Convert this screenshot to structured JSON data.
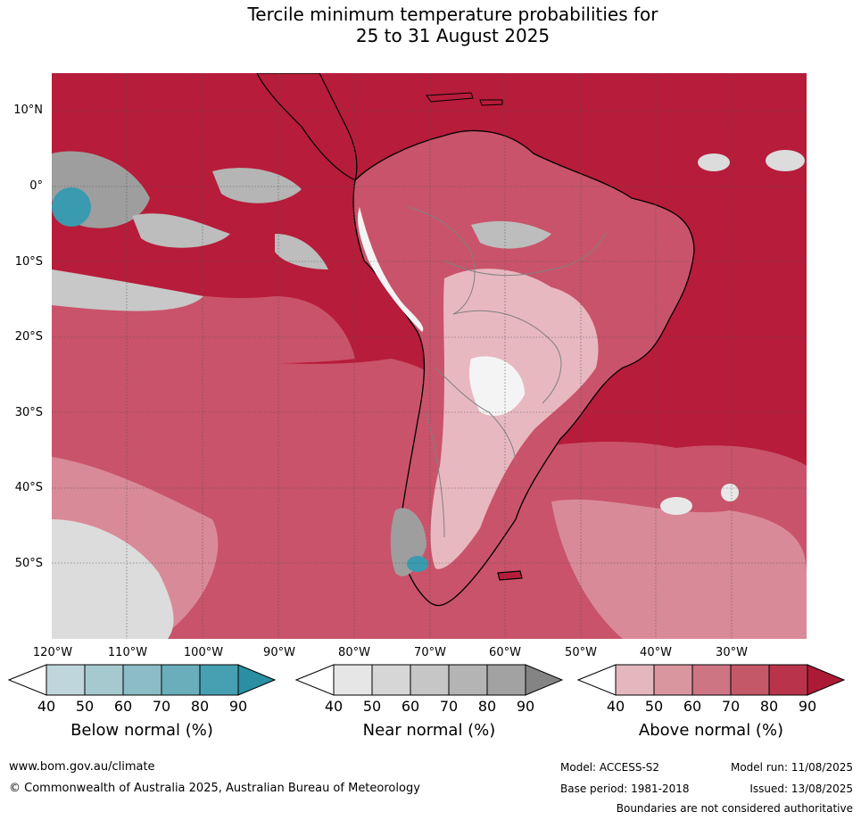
{
  "title": {
    "line1": "Tercile minimum temperature probabilities for",
    "line2": "25 to 31 August 2025"
  },
  "map": {
    "lat_labels": [
      "10°N",
      "0°",
      "10°S",
      "20°S",
      "30°S",
      "40°S",
      "50°S"
    ],
    "lon_labels": [
      "120°W",
      "110°W",
      "100°W",
      "90°W",
      "80°W",
      "70°W",
      "60°W",
      "50°W",
      "40°W",
      "30°W"
    ],
    "colors": {
      "above_70_90": "#b71c3a",
      "above_60_70": "#c9536a",
      "above_50_60": "#d98a98",
      "above_40_50": "#e8b8c0",
      "near": "#b5b5b5",
      "below": "#3a9bb0",
      "coast": "#000000",
      "borders": "#808080"
    }
  },
  "colorbars": [
    {
      "title": "Below normal (%)",
      "ticks": [
        "40",
        "50",
        "60",
        "70",
        "80",
        "90"
      ],
      "colors": [
        "#bfd6dc",
        "#a6c9d0",
        "#8cbcc5",
        "#6aaebb",
        "#46a0b2",
        "#2a8fa3"
      ]
    },
    {
      "title": "Near normal (%)",
      "ticks": [
        "40",
        "50",
        "60",
        "70",
        "80",
        "90"
      ],
      "colors": [
        "#e6e6e6",
        "#d6d6d6",
        "#c6c6c6",
        "#b4b4b4",
        "#a2a2a2",
        "#848484"
      ]
    },
    {
      "title": "Above normal (%)",
      "ticks": [
        "40",
        "50",
        "60",
        "70",
        "80",
        "90"
      ],
      "colors": [
        "#e3b7bd",
        "#d9969f",
        "#cd7583",
        "#c45868",
        "#b9344b",
        "#ad1a36"
      ]
    }
  ],
  "footer": {
    "website": "www.bom.gov.au/climate",
    "copyright": "© Commonwealth of Australia 2025, Australian Bureau of Meteorology",
    "model": "Model: ACCESS-S2",
    "base_period": "Base period: 1981-2018",
    "model_run": "Model run: 11/08/2025",
    "issued": "Issued: 13/08/2025",
    "disclaimer": "Boundaries are not considered authoritative"
  }
}
